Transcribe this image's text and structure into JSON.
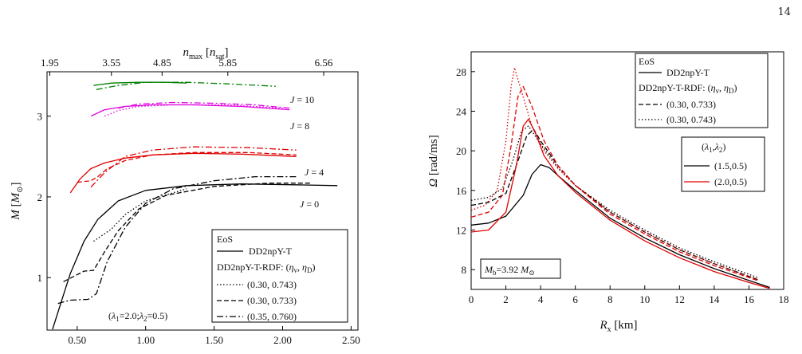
{
  "page_number": "14",
  "chart_data": [
    {
      "type": "line",
      "panel": "left",
      "xlabel": "(ρ_c) bottom axis",
      "xaxis_label_text": "",
      "ylabel": "M [M⊙]",
      "top_xlabel": "n_max [n_sat]",
      "xlim": [
        0.28,
        2.55
      ],
      "ylim": [
        0.35,
        3.55
      ],
      "xticks": [
        0.5,
        1.0,
        1.5,
        2.0,
        2.5
      ],
      "xtick_labels": [
        "0.50",
        "1.00",
        "1.50",
        "2.00",
        "2.50"
      ],
      "yticks": [
        1,
        2,
        3
      ],
      "ytick_labels": [
        "1",
        "2",
        "3"
      ],
      "top_ticks": [
        0.3,
        0.75,
        1.12,
        1.6,
        2.3
      ],
      "top_tick_labels": [
        "1.95",
        "3.55",
        "4.85",
        "5.85",
        "6.56"
      ],
      "legend": {
        "title": "EoS",
        "entries": [
          "DD2npY-T",
          "DD2npY-T-RDF: (η_v, η_D)",
          "(0.30, 0.743)",
          "(0.30, 0.733)",
          "(0.35, 0.760)"
        ],
        "placement": "bottom-right"
      },
      "annotations": {
        "lambda": "(λ1=2.0;λ2=0.5)",
        "J0": "J = 0",
        "J4": "J = 4",
        "J8": "J = 8",
        "J10": "J = 10"
      },
      "series": [
        {
          "name": "J=0 DD2npY-T",
          "color": "#000000",
          "dash": "solid",
          "x": [
            0.32,
            0.38,
            0.45,
            0.55,
            0.65,
            0.8,
            1.0,
            1.3,
            1.7,
            2.1,
            2.4
          ],
          "y": [
            0.36,
            0.68,
            1.05,
            1.45,
            1.72,
            1.95,
            2.08,
            2.14,
            2.16,
            2.15,
            2.14
          ]
        },
        {
          "name": "J=0 (0.30, 0.743)",
          "color": "#000000",
          "dash": "dot",
          "x": [
            0.62,
            0.68,
            0.75,
            0.85,
            1.0,
            1.3
          ],
          "y": [
            1.45,
            1.52,
            1.6,
            1.78,
            1.95,
            2.1
          ]
        },
        {
          "name": "J=0 (0.30, 0.733)",
          "color": "#000000",
          "dash": "dash",
          "x": [
            0.4,
            0.55,
            0.62,
            0.7,
            0.8,
            0.95,
            1.15,
            1.5,
            1.9,
            2.2
          ],
          "y": [
            0.95,
            1.08,
            1.09,
            1.32,
            1.58,
            1.85,
            2.02,
            2.13,
            2.17,
            2.17
          ]
        },
        {
          "name": "J=0 (0.35, 0.760)",
          "color": "#000000",
          "dash": "dashdot",
          "x": [
            0.36,
            0.45,
            0.58,
            0.64,
            0.72,
            0.85,
            1.0,
            1.2,
            1.5,
            1.8,
            2.1
          ],
          "y": [
            0.68,
            0.72,
            0.73,
            0.8,
            1.2,
            1.62,
            1.92,
            2.1,
            2.2,
            2.25,
            2.25
          ]
        },
        {
          "name": "J=4 DD2npY-T",
          "color": "#e00000",
          "dash": "solid",
          "x": [
            0.45,
            0.52,
            0.6,
            0.7,
            0.85,
            1.05,
            1.35,
            1.7,
            2.1
          ],
          "y": [
            2.05,
            2.22,
            2.35,
            2.42,
            2.48,
            2.52,
            2.54,
            2.53,
            2.5
          ]
        },
        {
          "name": "J=4 (0.30, 0.733)",
          "color": "#e00000",
          "dash": "dash",
          "x": [
            0.5,
            0.6,
            0.65,
            0.72,
            0.85,
            1.05,
            1.35,
            1.75,
            2.1
          ],
          "y": [
            2.18,
            2.2,
            2.25,
            2.35,
            2.45,
            2.52,
            2.55,
            2.55,
            2.52
          ]
        },
        {
          "name": "J=4 (0.35, 0.760)",
          "color": "#e00000",
          "dash": "dashdot",
          "x": [
            0.6,
            0.7,
            0.85,
            1.05,
            1.35,
            1.75,
            2.1
          ],
          "y": [
            2.12,
            2.3,
            2.5,
            2.58,
            2.62,
            2.61,
            2.58
          ]
        },
        {
          "name": "J=8 DD2npY-T",
          "color": "#e000e0",
          "dash": "solid",
          "x": [
            0.6,
            0.7,
            0.85,
            1.05,
            1.35,
            1.7,
            2.05
          ],
          "y": [
            3.0,
            3.08,
            3.12,
            3.14,
            3.14,
            3.12,
            3.08
          ]
        },
        {
          "name": "J=8 (0.30, 0.743)",
          "color": "#e000e0",
          "dash": "dot",
          "x": [
            0.7,
            0.8,
            0.95,
            1.2,
            1.6,
            2.0
          ],
          "y": [
            3.0,
            3.07,
            3.12,
            3.14,
            3.14,
            3.1
          ]
        },
        {
          "name": "J=8 (0.35, 0.760)",
          "color": "#e000e0",
          "dash": "dashdot",
          "x": [
            0.8,
            0.95,
            1.2,
            1.5,
            1.8,
            2.05
          ],
          "y": [
            3.1,
            3.15,
            3.17,
            3.16,
            3.14,
            3.1
          ]
        },
        {
          "name": "J=10 DD2npY-T",
          "color": "#008000",
          "dash": "solid",
          "x": [
            0.62,
            0.75,
            0.95,
            1.15,
            1.3
          ],
          "y": [
            3.38,
            3.41,
            3.42,
            3.42,
            3.41
          ]
        },
        {
          "name": "J=10 (0.35, 0.760)",
          "color": "#008000",
          "dash": "dashdot",
          "x": [
            0.64,
            0.8,
            1.0,
            1.3,
            1.6,
            1.95
          ],
          "y": [
            3.33,
            3.38,
            3.42,
            3.42,
            3.4,
            3.37
          ]
        }
      ]
    },
    {
      "type": "line",
      "panel": "right",
      "xlabel": "R_x [km]",
      "ylabel": "Ω [rad/ms]",
      "xlim": [
        0,
        18
      ],
      "ylim": [
        6,
        30
      ],
      "xticks": [
        0,
        2,
        4,
        6,
        8,
        10,
        12,
        14,
        16,
        18
      ],
      "yticks": [
        8,
        12,
        16,
        20,
        24,
        28
      ],
      "legend": {
        "eos_title": "EoS",
        "eos_entries": [
          "DD2npY-T",
          "DD2npY-T-RDF: (η_v, η_D)",
          "(0.30, 0.733)",
          "(0.30, 0.743)"
        ],
        "lambda_title": "(λ1,λ2)",
        "lambda_entries": [
          "(1.5,0.5)",
          "(2.0,0.5)"
        ],
        "placement": "top-right"
      },
      "annotations": {
        "mass": "M_b=3.92 M⊙"
      },
      "series": [
        {
          "name": "(1.5,0.5) DD2npY-T",
          "color": "#000000",
          "dash": "solid",
          "x": [
            0,
            1,
            2,
            3,
            3.5,
            4,
            4.5,
            5,
            6,
            8,
            10,
            12,
            14,
            16,
            17.2
          ],
          "y": [
            12.5,
            12.7,
            13.4,
            15.5,
            17.6,
            18.6,
            18.3,
            17.5,
            16.0,
            13.2,
            11.2,
            9.5,
            8.1,
            6.9,
            6.2
          ]
        },
        {
          "name": "(1.5,0.5) (0.30, 0.733)",
          "color": "#000000",
          "dash": "dash",
          "x": [
            0,
            1,
            2,
            2.6,
            3.2,
            3.6,
            4.0,
            5,
            6,
            8,
            10,
            12,
            14,
            16.5
          ],
          "y": [
            14.5,
            14.8,
            15.7,
            18.5,
            21.5,
            22.2,
            21.0,
            18.5,
            16.5,
            13.8,
            11.8,
            10.0,
            8.6,
            7.0
          ]
        },
        {
          "name": "(1.5,0.5) (0.30, 0.743)",
          "color": "#000000",
          "dash": "dot",
          "x": [
            0,
            1,
            1.8,
            2.4,
            2.9,
            3.3,
            4.0,
            5,
            6,
            8,
            10,
            12,
            14,
            16.5
          ],
          "y": [
            15.0,
            15.3,
            16.2,
            19.0,
            22.0,
            22.5,
            20.7,
            18.3,
            16.5,
            14.0,
            12.0,
            10.2,
            8.8,
            7.2
          ]
        },
        {
          "name": "(2.0,0.5) DD2npY-T",
          "color": "#e00000",
          "dash": "solid",
          "x": [
            0,
            1,
            2,
            2.6,
            3.0,
            3.3,
            3.7,
            4.2,
            5,
            6,
            8,
            10,
            12,
            14,
            16,
            17.2
          ],
          "y": [
            11.8,
            12.0,
            13.8,
            18.5,
            22.5,
            23.2,
            21.8,
            19.5,
            17.5,
            15.8,
            13.0,
            10.9,
            9.2,
            7.8,
            6.7,
            6.1
          ]
        },
        {
          "name": "(2.0,0.5) (0.30, 0.733)",
          "color": "#e00000",
          "dash": "dash",
          "x": [
            0,
            1,
            1.8,
            2.3,
            2.7,
            3.0,
            3.5,
            4.2,
            5,
            6,
            8,
            10,
            12,
            14,
            16.5
          ],
          "y": [
            13.3,
            13.8,
            15.5,
            20.5,
            25.5,
            26.5,
            24.5,
            21.0,
            18.5,
            16.5,
            13.6,
            11.6,
            9.8,
            8.4,
            6.9
          ]
        },
        {
          "name": "(2.0,0.5) (0.30, 0.743)",
          "color": "#e00000",
          "dash": "dot",
          "x": [
            0,
            0.8,
            1.5,
            2.0,
            2.3,
            2.5,
            2.9,
            3.5,
            4.2,
            5,
            6,
            8,
            10,
            12,
            14,
            16.5
          ],
          "y": [
            14.0,
            14.5,
            16.0,
            21.0,
            26.5,
            28.4,
            26.0,
            22.5,
            20.0,
            18.2,
            16.5,
            13.8,
            11.8,
            10.0,
            8.6,
            7.0
          ]
        }
      ]
    }
  ]
}
